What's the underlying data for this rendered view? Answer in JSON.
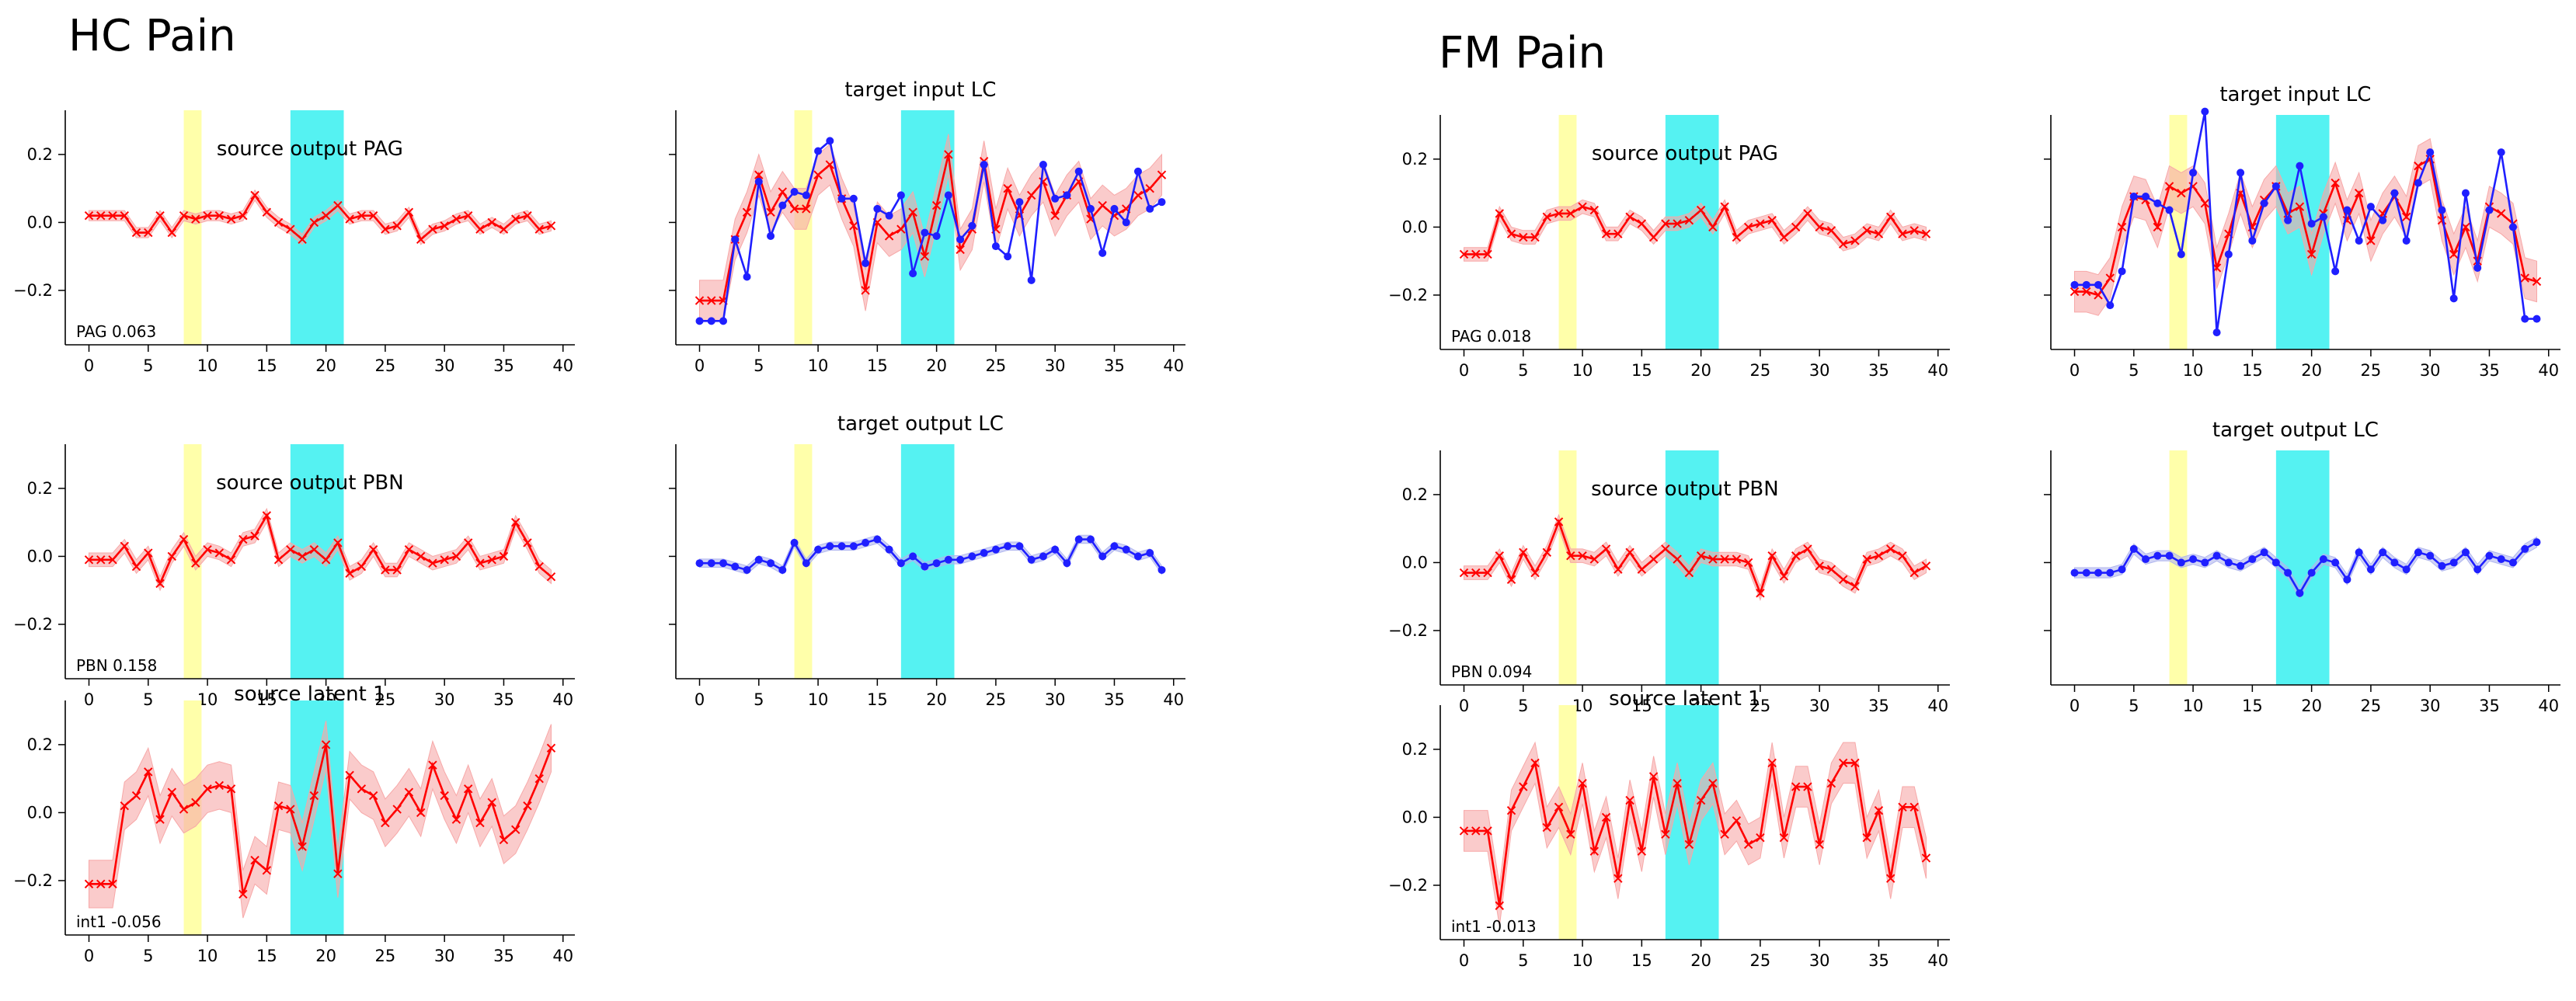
{
  "figure": {
    "groups": [
      {
        "id": "hc",
        "title": "HC Pain"
      },
      {
        "id": "fm",
        "title": "FM Pain"
      }
    ]
  },
  "colors": {
    "red": "#ff0000",
    "red_band": "#f7a8a8",
    "blue": "#1f1fff",
    "blue_band": "#b0b6ee",
    "highlight_yellow": "#ffffaa",
    "highlight_cyan": "#55f2f2",
    "axis": "#000000"
  },
  "chart_data": [
    {
      "group": "hc",
      "slot": "r0c0",
      "type": "line",
      "title": "source output PAG",
      "annotation": "PAG 0.063",
      "xlim": [
        -2,
        41
      ],
      "ylim": [
        -0.36,
        0.33
      ],
      "xticks": [
        0,
        5,
        10,
        15,
        20,
        25,
        30,
        35,
        40
      ],
      "yticks": [
        -0.2,
        0.0,
        0.2
      ],
      "ytick_labels": [
        "−0.2",
        "0.0",
        "0.2"
      ],
      "highlights": [
        {
          "x0": 8,
          "x1": 9.5,
          "color": "yellow"
        },
        {
          "x0": 17,
          "x1": 21.5,
          "color": "cyan"
        }
      ],
      "series": [
        {
          "name": "source output PAG",
          "color": "red",
          "marker": "x",
          "band": 0.015,
          "values": [
            0.02,
            0.02,
            0.02,
            0.02,
            -0.03,
            -0.03,
            0.02,
            -0.03,
            0.02,
            0.01,
            0.02,
            0.02,
            0.01,
            0.02,
            0.08,
            0.03,
            0.0,
            -0.02,
            -0.05,
            0.0,
            0.02,
            0.05,
            0.01,
            0.02,
            0.02,
            -0.02,
            -0.01,
            0.03,
            -0.05,
            -0.02,
            -0.01,
            0.01,
            0.02,
            -0.02,
            0.0,
            -0.02,
            0.01,
            0.02,
            -0.02,
            -0.01
          ]
        }
      ]
    },
    {
      "group": "hc",
      "slot": "r0c1",
      "type": "line",
      "title": "target input LC",
      "annotation": "",
      "xlim": [
        -2,
        41
      ],
      "ylim": [
        -0.36,
        0.33
      ],
      "xticks": [
        0,
        5,
        10,
        15,
        20,
        25,
        30,
        35,
        40
      ],
      "yticks": [
        -0.2,
        0.0,
        0.2
      ],
      "ytick_labels": [
        "",
        "",
        ""
      ],
      "highlights": [
        {
          "x0": 8,
          "x1": 9.5,
          "color": "yellow"
        },
        {
          "x0": 17,
          "x1": 21.5,
          "color": "cyan"
        }
      ],
      "series": [
        {
          "name": "target input LC (model)",
          "color": "red",
          "marker": "x",
          "band": 0.06,
          "values": [
            -0.23,
            -0.23,
            -0.23,
            -0.05,
            0.03,
            0.14,
            0.03,
            0.09,
            0.04,
            0.04,
            0.14,
            0.17,
            0.07,
            -0.01,
            -0.2,
            0.0,
            -0.04,
            -0.02,
            0.03,
            -0.1,
            0.05,
            0.2,
            -0.08,
            -0.02,
            0.18,
            -0.02,
            0.1,
            0.02,
            0.08,
            0.12,
            0.02,
            0.08,
            0.12,
            0.01,
            0.05,
            0.02,
            0.04,
            0.08,
            0.1,
            0.14
          ]
        },
        {
          "name": "target input LC (data)",
          "color": "blue",
          "marker": "o",
          "band": 0,
          "values": [
            -0.29,
            -0.29,
            -0.29,
            -0.05,
            -0.16,
            0.12,
            -0.04,
            0.05,
            0.09,
            0.08,
            0.21,
            0.24,
            0.07,
            0.07,
            -0.12,
            0.04,
            0.02,
            0.08,
            -0.15,
            -0.03,
            -0.04,
            0.08,
            -0.05,
            -0.01,
            0.17,
            -0.07,
            -0.1,
            0.06,
            -0.17,
            0.17,
            0.07,
            0.08,
            0.15,
            0.04,
            -0.09,
            0.04,
            0.0,
            0.15,
            0.04,
            0.06
          ]
        }
      ]
    },
    {
      "group": "hc",
      "slot": "r1c0",
      "type": "line",
      "title": "source output PBN",
      "annotation": "PBN 0.158",
      "xlim": [
        -2,
        41
      ],
      "ylim": [
        -0.36,
        0.33
      ],
      "xticks": [
        0,
        5,
        10,
        15,
        20,
        25,
        30,
        35,
        40
      ],
      "yticks": [
        -0.2,
        0.0,
        0.2
      ],
      "ytick_labels": [
        "−0.2",
        "0.0",
        "0.2"
      ],
      "highlights": [
        {
          "x0": 8,
          "x1": 9.5,
          "color": "yellow"
        },
        {
          "x0": 17,
          "x1": 21.5,
          "color": "cyan"
        }
      ],
      "series": [
        {
          "name": "source output PBN",
          "color": "red",
          "marker": "x",
          "band": 0.02,
          "values": [
            -0.01,
            -0.01,
            -0.01,
            0.03,
            -0.03,
            0.01,
            -0.08,
            0.0,
            0.05,
            -0.02,
            0.02,
            0.01,
            -0.01,
            0.05,
            0.06,
            0.12,
            -0.01,
            0.02,
            0.0,
            0.02,
            -0.01,
            0.04,
            -0.05,
            -0.03,
            0.02,
            -0.04,
            -0.04,
            0.02,
            0.0,
            -0.02,
            -0.01,
            0.0,
            0.04,
            -0.02,
            -0.01,
            0.0,
            0.1,
            0.04,
            -0.03,
            -0.06
          ]
        }
      ]
    },
    {
      "group": "hc",
      "slot": "r1c1",
      "type": "line",
      "title": "target output LC",
      "annotation": "",
      "xlim": [
        -2,
        41
      ],
      "ylim": [
        -0.36,
        0.33
      ],
      "xticks": [
        0,
        5,
        10,
        15,
        20,
        25,
        30,
        35,
        40
      ],
      "yticks": [
        -0.2,
        0.0,
        0.2
      ],
      "ytick_labels": [
        "",
        "",
        ""
      ],
      "highlights": [
        {
          "x0": 8,
          "x1": 9.5,
          "color": "yellow"
        },
        {
          "x0": 17,
          "x1": 21.5,
          "color": "cyan"
        }
      ],
      "series": [
        {
          "name": "target output LC",
          "color": "blue",
          "marker": "o",
          "band": 0.012,
          "values": [
            -0.02,
            -0.02,
            -0.02,
            -0.03,
            -0.04,
            -0.01,
            -0.02,
            -0.04,
            0.04,
            -0.02,
            0.02,
            0.03,
            0.03,
            0.03,
            0.04,
            0.05,
            0.02,
            -0.02,
            0.0,
            -0.03,
            -0.02,
            -0.01,
            -0.01,
            0.0,
            0.01,
            0.02,
            0.03,
            0.03,
            -0.01,
            0.0,
            0.02,
            -0.02,
            0.05,
            0.05,
            0.0,
            0.03,
            0.02,
            0.0,
            0.01,
            -0.04
          ]
        }
      ]
    },
    {
      "group": "hc",
      "slot": "r2c0",
      "type": "line",
      "title": "source latent 1",
      "annotation": "int1 -0.056",
      "xlim": [
        -2,
        41
      ],
      "ylim": [
        -0.36,
        0.33
      ],
      "xticks": [
        0,
        5,
        10,
        15,
        20,
        25,
        30,
        35,
        40
      ],
      "yticks": [
        -0.2,
        0.0,
        0.2
      ],
      "ytick_labels": [
        "−0.2",
        "0.0",
        "0.2"
      ],
      "highlights": [
        {
          "x0": 8,
          "x1": 9.5,
          "color": "yellow"
        },
        {
          "x0": 17,
          "x1": 21.5,
          "color": "cyan"
        }
      ],
      "series": [
        {
          "name": "source latent 1",
          "color": "red",
          "marker": "x",
          "band": 0.07,
          "values": [
            -0.21,
            -0.21,
            -0.21,
            0.02,
            0.05,
            0.12,
            -0.02,
            0.06,
            0.01,
            0.03,
            0.07,
            0.08,
            0.07,
            -0.24,
            -0.14,
            -0.17,
            0.02,
            0.01,
            -0.1,
            0.05,
            0.2,
            -0.18,
            0.11,
            0.07,
            0.05,
            -0.03,
            0.01,
            0.06,
            0.0,
            0.14,
            0.05,
            -0.02,
            0.07,
            -0.03,
            0.03,
            -0.08,
            -0.05,
            0.02,
            0.1,
            0.19
          ]
        }
      ]
    },
    {
      "group": "fm",
      "slot": "r0c0",
      "type": "line",
      "title": "source output PAG",
      "annotation": "PAG 0.018",
      "xlim": [
        -2,
        41
      ],
      "ylim": [
        -0.36,
        0.33
      ],
      "xticks": [
        0,
        5,
        10,
        15,
        20,
        25,
        30,
        35,
        40
      ],
      "yticks": [
        -0.2,
        0.0,
        0.2
      ],
      "ytick_labels": [
        "−0.2",
        "0.0",
        "0.2"
      ],
      "highlights": [
        {
          "x0": 8,
          "x1": 9.5,
          "color": "yellow"
        },
        {
          "x0": 17,
          "x1": 21.5,
          "color": "cyan"
        }
      ],
      "series": [
        {
          "name": "source output PAG",
          "color": "red",
          "marker": "x",
          "band": 0.02,
          "values": [
            -0.08,
            -0.08,
            -0.08,
            0.04,
            -0.02,
            -0.03,
            -0.03,
            0.03,
            0.04,
            0.04,
            0.06,
            0.05,
            -0.02,
            -0.02,
            0.03,
            0.01,
            -0.03,
            0.01,
            0.01,
            0.02,
            0.05,
            0.0,
            0.06,
            -0.03,
            0.0,
            0.01,
            0.02,
            -0.03,
            0.0,
            0.04,
            0.0,
            -0.01,
            -0.05,
            -0.04,
            -0.01,
            -0.02,
            0.03,
            -0.02,
            -0.01,
            -0.02
          ]
        }
      ]
    },
    {
      "group": "fm",
      "slot": "r0c1",
      "type": "line",
      "title": "target input LC",
      "annotation": "",
      "xlim": [
        -2,
        41
      ],
      "ylim": [
        -0.36,
        0.33
      ],
      "xticks": [
        0,
        5,
        10,
        15,
        20,
        25,
        30,
        35,
        40
      ],
      "yticks": [
        -0.2,
        0.0,
        0.2
      ],
      "ytick_labels": [
        "",
        "",
        ""
      ],
      "highlights": [
        {
          "x0": 8,
          "x1": 9.5,
          "color": "yellow"
        },
        {
          "x0": 17,
          "x1": 21.5,
          "color": "cyan"
        }
      ],
      "series": [
        {
          "name": "target input LC (model)",
          "color": "red",
          "marker": "x",
          "band": 0.06,
          "values": [
            -0.19,
            -0.19,
            -0.2,
            -0.15,
            0.0,
            0.09,
            0.08,
            0.0,
            0.12,
            0.1,
            0.12,
            0.07,
            -0.12,
            -0.02,
            0.1,
            0.0,
            0.08,
            0.12,
            0.04,
            0.06,
            -0.08,
            0.04,
            0.13,
            0.02,
            0.1,
            -0.04,
            0.04,
            0.09,
            0.03,
            0.18,
            0.2,
            0.02,
            -0.08,
            0.0,
            -0.1,
            0.06,
            0.04,
            0.01,
            -0.15,
            -0.16
          ]
        },
        {
          "name": "target input LC (data)",
          "color": "blue",
          "marker": "o",
          "band": 0,
          "values": [
            -0.17,
            -0.17,
            -0.17,
            -0.23,
            -0.13,
            0.09,
            0.09,
            0.07,
            0.05,
            -0.08,
            0.16,
            0.34,
            -0.31,
            -0.08,
            0.16,
            -0.04,
            0.07,
            0.12,
            0.02,
            0.18,
            0.01,
            0.03,
            -0.13,
            0.05,
            -0.04,
            0.06,
            0.02,
            0.1,
            -0.04,
            0.13,
            0.22,
            0.05,
            -0.21,
            0.1,
            -0.12,
            0.05,
            0.22,
            0.0,
            -0.27,
            -0.27
          ]
        }
      ]
    },
    {
      "group": "fm",
      "slot": "r1c0",
      "type": "line",
      "title": "source output PBN",
      "annotation": "PBN 0.094",
      "xlim": [
        -2,
        41
      ],
      "ylim": [
        -0.36,
        0.33
      ],
      "xticks": [
        0,
        5,
        10,
        15,
        20,
        25,
        30,
        35,
        40
      ],
      "yticks": [
        -0.2,
        0.0,
        0.2
      ],
      "ytick_labels": [
        "−0.2",
        "0.0",
        "0.2"
      ],
      "highlights": [
        {
          "x0": 8,
          "x1": 9.5,
          "color": "yellow"
        },
        {
          "x0": 17,
          "x1": 21.5,
          "color": "cyan"
        }
      ],
      "series": [
        {
          "name": "source output PBN",
          "color": "red",
          "marker": "x",
          "band": 0.02,
          "values": [
            -0.03,
            -0.03,
            -0.03,
            0.02,
            -0.05,
            0.03,
            -0.03,
            0.03,
            0.12,
            0.02,
            0.02,
            0.01,
            0.04,
            -0.02,
            0.03,
            -0.02,
            0.01,
            0.04,
            0.01,
            -0.03,
            0.02,
            0.01,
            0.01,
            0.01,
            0.0,
            -0.09,
            0.02,
            -0.04,
            0.02,
            0.04,
            -0.01,
            -0.02,
            -0.05,
            -0.07,
            0.01,
            0.02,
            0.04,
            0.02,
            -0.03,
            -0.01
          ]
        }
      ]
    },
    {
      "group": "fm",
      "slot": "r1c1",
      "type": "line",
      "title": "target output LC",
      "annotation": "",
      "xlim": [
        -2,
        41
      ],
      "ylim": [
        -0.36,
        0.33
      ],
      "xticks": [
        0,
        5,
        10,
        15,
        20,
        25,
        30,
        35,
        40
      ],
      "yticks": [
        -0.2,
        0.0,
        0.2
      ],
      "ytick_labels": [
        "",
        "",
        ""
      ],
      "highlights": [
        {
          "x0": 8,
          "x1": 9.5,
          "color": "yellow"
        },
        {
          "x0": 17,
          "x1": 21.5,
          "color": "cyan"
        }
      ],
      "series": [
        {
          "name": "target output LC",
          "color": "blue",
          "marker": "o",
          "band": 0.015,
          "values": [
            -0.03,
            -0.03,
            -0.03,
            -0.03,
            -0.02,
            0.04,
            0.01,
            0.02,
            0.02,
            0.0,
            0.01,
            0.0,
            0.02,
            0.0,
            -0.01,
            0.01,
            0.03,
            0.0,
            -0.03,
            -0.09,
            -0.03,
            0.01,
            0.0,
            -0.05,
            0.03,
            -0.02,
            0.03,
            0.0,
            -0.02,
            0.03,
            0.02,
            -0.01,
            0.0,
            0.03,
            -0.02,
            0.02,
            0.01,
            0.0,
            0.04,
            0.06
          ]
        }
      ]
    },
    {
      "group": "fm",
      "slot": "r2c0",
      "type": "line",
      "title": "source latent 1",
      "annotation": "int1 -0.013",
      "xlim": [
        -2,
        41
      ],
      "ylim": [
        -0.36,
        0.33
      ],
      "xticks": [
        0,
        5,
        10,
        15,
        20,
        25,
        30,
        35,
        40
      ],
      "yticks": [
        -0.2,
        0.0,
        0.2
      ],
      "ytick_labels": [
        "−0.2",
        "0.0",
        "0.2"
      ],
      "highlights": [
        {
          "x0": 8,
          "x1": 9.5,
          "color": "yellow"
        },
        {
          "x0": 17,
          "x1": 21.5,
          "color": "cyan"
        }
      ],
      "series": [
        {
          "name": "source latent 1",
          "color": "red",
          "marker": "x",
          "band": 0.06,
          "values": [
            -0.04,
            -0.04,
            -0.04,
            -0.26,
            0.02,
            0.09,
            0.16,
            -0.03,
            0.03,
            -0.05,
            0.1,
            -0.1,
            0.0,
            -0.18,
            0.05,
            -0.1,
            0.12,
            -0.05,
            0.1,
            -0.08,
            0.05,
            0.1,
            -0.05,
            -0.01,
            -0.08,
            -0.06,
            0.16,
            -0.06,
            0.09,
            0.09,
            -0.08,
            0.1,
            0.16,
            0.16,
            -0.06,
            0.02,
            -0.18,
            0.03,
            0.03,
            -0.12
          ]
        }
      ]
    }
  ]
}
